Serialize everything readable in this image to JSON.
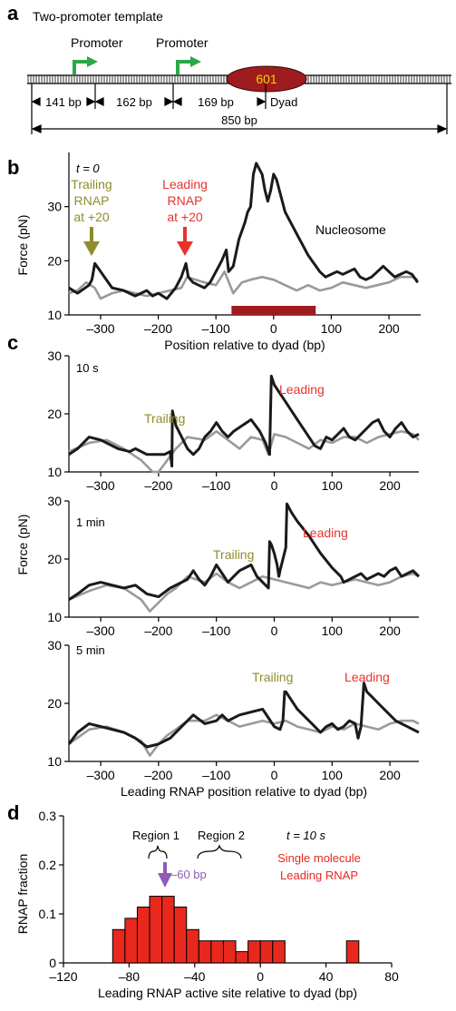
{
  "panel_labels": {
    "a": "a",
    "b": "b",
    "c": "c",
    "d": "d"
  },
  "schematic": {
    "title": "Two-promoter template",
    "promoter_labels": [
      "Promoter",
      "Promoter"
    ],
    "nucleosome_label": "601",
    "dyad_label": "Dyad",
    "spacings": [
      "141 bp",
      "162 bp",
      "169 bp"
    ],
    "total": "850 bp",
    "colors": {
      "promoter": "#2aa84a",
      "nucleosome": "#9e1b1e",
      "nucleosome_text": "#f2d200"
    }
  },
  "panel_b": {
    "time_label": "t = 0",
    "trailing_annotation": [
      "Trailing",
      "RNAP",
      "at +20"
    ],
    "leading_annotation": [
      "Leading",
      "RNAP",
      "at +20"
    ],
    "nucleosome_label": "Nucleosome",
    "colors": {
      "trailing": "#8f8c2c",
      "leading": "#e8332a",
      "bar": "#9e1b1e"
    }
  },
  "panel_c": {
    "subplots": [
      {
        "time": "10 s",
        "trailing": "Trailing",
        "leading": "Leading"
      },
      {
        "time": "1 min",
        "trailing": "Trailing",
        "leading": "Leading"
      },
      {
        "time": "5 min",
        "trailing": "Trailing",
        "leading": "Leading"
      }
    ]
  },
  "panel_d": {
    "region1": "Region 1",
    "region2": "Region 2",
    "time_label": "t = 10 s",
    "legend": [
      "Single molecule",
      "Leading RNAP"
    ],
    "marker_label": "–60 bp",
    "colors": {
      "bars": "#e8281d",
      "marker": "#8e5bb5",
      "legend": "#e8281d"
    }
  },
  "chart_data": [
    {
      "type": "line",
      "panel": "b",
      "xlabel": "Position relative to dyad (bp)",
      "ylabel": "Force (pN)",
      "xlim": [
        -355,
        255
      ],
      "ylim": [
        10,
        40
      ],
      "xticks": [
        -300,
        -200,
        -100,
        0,
        100,
        200
      ],
      "xtick_labels": [
        "–300",
        "–200",
        "–100",
        "0",
        "100",
        "200"
      ],
      "yticks": [
        10,
        20,
        30
      ],
      "series": [
        {
          "name": "",
          "color": "#9a9a9a",
          "x": [
            -355,
            -340,
            -325,
            -310,
            -300,
            -280,
            -260,
            -240,
            -220,
            -200,
            -180,
            -160,
            -150,
            -120,
            -100,
            -85,
            -70,
            -55,
            -40,
            -20,
            0,
            20,
            40,
            60,
            80,
            100,
            120,
            140,
            160,
            180,
            200,
            220,
            240,
            250
          ],
          "y": [
            14,
            14.5,
            16,
            15,
            13,
            14,
            14.5,
            14,
            13.5,
            14,
            14.5,
            15,
            17,
            16,
            15.5,
            18,
            14,
            16,
            16.5,
            17,
            16.5,
            15.5,
            14.5,
            15.5,
            14.5,
            15,
            16,
            15.5,
            15,
            15.5,
            16,
            17,
            17,
            16.5
          ]
        },
        {
          "name": "Nucleosome",
          "color": "#1a1a1a",
          "x": [
            -355,
            -340,
            -320,
            -315,
            -310,
            -300,
            -290,
            -280,
            -260,
            -240,
            -220,
            -210,
            -200,
            -185,
            -170,
            -160,
            -152,
            -148,
            -140,
            -120,
            -110,
            -100,
            -90,
            -82,
            -78,
            -70,
            -60,
            -50,
            -45,
            -40,
            -35,
            -30,
            -25,
            -20,
            -15,
            -10,
            -5,
            0,
            5,
            10,
            20,
            40,
            60,
            70,
            80,
            90,
            100,
            110,
            120,
            130,
            140,
            150,
            160,
            170,
            180,
            190,
            200,
            210,
            220,
            230,
            240,
            250
          ],
          "y": [
            15,
            14,
            15.5,
            16.5,
            19.5,
            18,
            16.5,
            15,
            14.5,
            13.5,
            14.5,
            13.5,
            14,
            13,
            15,
            17,
            19.5,
            17,
            16,
            15,
            16,
            18,
            20,
            22,
            18,
            19,
            24,
            27,
            29,
            30,
            36,
            38,
            37,
            36,
            33,
            31,
            33,
            36,
            35,
            33,
            29,
            25,
            21,
            19.5,
            18,
            17,
            17.5,
            18,
            17.5,
            18,
            18.5,
            17,
            16.5,
            17,
            18,
            19,
            18,
            17,
            17.5,
            18,
            17.5,
            16
          ]
        }
      ],
      "annotations": [
        "Trailing RNAP at +20 (x = -315)",
        "Leading RNAP at +20 (x = -150)"
      ],
      "nucleosome_bar": [
        -73,
        73
      ]
    },
    {
      "type": "line",
      "panel": "c-10s",
      "xlim": [
        -355,
        250
      ],
      "ylim": [
        10,
        30
      ],
      "xticks": [
        -300,
        -200,
        -100,
        0,
        100,
        200
      ],
      "xtick_labels": [
        "–300",
        "–200",
        "–100",
        "0",
        "100",
        "200"
      ],
      "yticks": [
        10,
        20,
        30
      ],
      "series": [
        {
          "name": "",
          "color": "#9a9a9a",
          "x": [
            -355,
            -320,
            -290,
            -260,
            -230,
            -210,
            -200,
            -185,
            -170,
            -150,
            -120,
            -100,
            -80,
            -60,
            -40,
            -20,
            -10,
            0,
            20,
            40,
            60,
            80,
            100,
            120,
            140,
            160,
            180,
            200,
            220,
            240,
            250
          ],
          "y": [
            13.5,
            15,
            15.5,
            14,
            12,
            10,
            10,
            12,
            14,
            16,
            15.5,
            17,
            15.5,
            14,
            16,
            15.5,
            13,
            16.5,
            16,
            15,
            14,
            15.5,
            15,
            16,
            16,
            15,
            16,
            16.5,
            17,
            16.5,
            15.5
          ]
        },
        {
          "name": "",
          "color": "#1a1a1a",
          "x": [
            -355,
            -340,
            -320,
            -300,
            -290,
            -270,
            -250,
            -240,
            -220,
            -200,
            -190,
            -180,
            -177,
            -176,
            -170,
            -160,
            -150,
            -140,
            -130,
            -120,
            -110,
            -100,
            -90,
            -80,
            -70,
            -55,
            -40,
            -25,
            -15,
            -8,
            -5,
            0,
            10,
            20,
            40,
            60,
            70,
            80,
            90,
            100,
            110,
            120,
            130,
            140,
            150,
            160,
            170,
            180,
            190,
            200,
            210,
            220,
            230,
            240,
            250
          ],
          "y": [
            13,
            14,
            16,
            15.5,
            15,
            14,
            13.5,
            14,
            13,
            13,
            13,
            13.5,
            11,
            20.5,
            18,
            16,
            14,
            13,
            14,
            16,
            17,
            18.5,
            17,
            16,
            17,
            18,
            19,
            17,
            15,
            13,
            26.5,
            25,
            23.5,
            22,
            19,
            16,
            14.5,
            14,
            16,
            15.5,
            16.5,
            17.5,
            16,
            15.5,
            16.5,
            17.5,
            18.5,
            19,
            17,
            16,
            17.5,
            18.5,
            17,
            16,
            16.5
          ]
        }
      ]
    },
    {
      "type": "line",
      "panel": "c-1min",
      "ylabel": "Force (pN)",
      "xlim": [
        -355,
        250
      ],
      "ylim": [
        10,
        30
      ],
      "xticks": [
        -300,
        -200,
        -100,
        0,
        100,
        200
      ],
      "xtick_labels": [
        "–300",
        "–200",
        "–100",
        "0",
        "100",
        "200"
      ],
      "yticks": [
        10,
        20,
        30
      ],
      "series": [
        {
          "name": "",
          "color": "#9a9a9a",
          "x": [
            -355,
            -320,
            -290,
            -260,
            -230,
            -215,
            -200,
            -185,
            -170,
            -150,
            -120,
            -100,
            -80,
            -60,
            -40,
            -20,
            0,
            20,
            40,
            60,
            80,
            100,
            120,
            140,
            160,
            180,
            200,
            220,
            240,
            250
          ],
          "y": [
            13,
            14.5,
            15.5,
            15,
            13,
            11,
            12.5,
            14,
            15,
            17,
            16,
            17.5,
            16,
            15,
            16,
            17,
            16.5,
            16,
            15.5,
            15,
            16,
            15.5,
            16,
            16.5,
            16,
            15.5,
            16,
            17,
            17.5,
            17
          ]
        },
        {
          "name": "",
          "color": "#1a1a1a",
          "x": [
            -355,
            -340,
            -320,
            -300,
            -280,
            -260,
            -240,
            -220,
            -200,
            -180,
            -160,
            -150,
            -140,
            -130,
            -120,
            -110,
            -100,
            -90,
            -80,
            -70,
            -60,
            -50,
            -40,
            -30,
            -20,
            -10,
            -8,
            -5,
            0,
            5,
            8,
            10,
            15,
            20,
            22,
            30,
            40,
            60,
            80,
            100,
            115,
            120,
            130,
            140,
            150,
            160,
            170,
            180,
            190,
            200,
            210,
            220,
            230,
            240,
            250
          ],
          "y": [
            13,
            14,
            15.5,
            16,
            15.5,
            15,
            15.5,
            14,
            13.5,
            15,
            16,
            16.5,
            18,
            16.5,
            15.5,
            17,
            19,
            17.5,
            16,
            17,
            18,
            18.5,
            19,
            17,
            16,
            15,
            23,
            22.5,
            21,
            19,
            17,
            18,
            20,
            22,
            29.5,
            28,
            26.5,
            24,
            21,
            18.5,
            17,
            16,
            16.5,
            17,
            17.5,
            16.5,
            17,
            17.5,
            17,
            18,
            18.5,
            17,
            17.5,
            18,
            17
          ]
        }
      ]
    },
    {
      "type": "line",
      "panel": "c-5min",
      "xlabel": "Leading RNAP position relative to dyad (bp)",
      "xlim": [
        -355,
        250
      ],
      "ylim": [
        10,
        30
      ],
      "xticks": [
        -300,
        -200,
        -100,
        0,
        100,
        200
      ],
      "xtick_labels": [
        "–300",
        "–200",
        "–100",
        "0",
        "100",
        "200"
      ],
      "yticks": [
        10,
        20,
        30
      ],
      "series": [
        {
          "name": "",
          "color": "#9a9a9a",
          "x": [
            -355,
            -320,
            -290,
            -260,
            -230,
            -215,
            -200,
            -185,
            -170,
            -150,
            -120,
            -100,
            -80,
            -60,
            -40,
            -20,
            0,
            20,
            40,
            60,
            80,
            100,
            120,
            140,
            160,
            180,
            200,
            220,
            240,
            250
          ],
          "y": [
            13,
            15.5,
            16,
            15,
            13.5,
            11,
            13,
            14.5,
            15.5,
            17,
            17,
            18,
            17,
            16,
            16.5,
            17,
            16.5,
            17,
            16,
            15.5,
            15,
            16,
            15.5,
            16.5,
            16,
            15.5,
            16.5,
            17,
            17,
            16.5
          ]
        },
        {
          "name": "",
          "color": "#1a1a1a",
          "x": [
            -355,
            -340,
            -320,
            -300,
            -280,
            -260,
            -240,
            -220,
            -200,
            -180,
            -160,
            -150,
            -140,
            -120,
            -100,
            -90,
            -80,
            -60,
            -40,
            -20,
            -10,
            0,
            10,
            15,
            18,
            20,
            40,
            60,
            70,
            80,
            90,
            100,
            110,
            120,
            130,
            140,
            145,
            150,
            155,
            160,
            170,
            180,
            190,
            200,
            210,
            220,
            230,
            240,
            250
          ],
          "y": [
            13,
            15,
            16.5,
            16,
            15.5,
            15,
            14,
            12.5,
            13,
            14,
            16,
            17,
            18,
            16.5,
            17,
            18,
            17,
            18,
            18.5,
            19,
            17.5,
            16,
            15.5,
            17,
            22,
            22,
            19,
            17,
            16,
            15,
            16,
            16.5,
            15.5,
            16,
            17,
            16.5,
            14,
            16,
            23.5,
            22,
            21,
            20,
            19,
            18,
            17,
            16.5,
            16,
            15.5,
            15
          ]
        }
      ]
    },
    {
      "type": "bar",
      "panel": "d",
      "xlabel": "Leading RNAP active site relative to dyad (bp)",
      "ylabel": "RNAP fraction",
      "xlim": [
        -120,
        80
      ],
      "ylim": [
        0,
        0.3
      ],
      "xticks": [
        -120,
        -80,
        -40,
        0,
        40,
        80
      ],
      "xtick_labels": [
        "–120",
        "–80",
        "–40",
        "0",
        "40",
        "80"
      ],
      "yticks": [
        0,
        0.1,
        0.2,
        0.3
      ],
      "ytick_labels": [
        "0",
        "0.1",
        "0.2",
        "0.3"
      ],
      "bin_width": 7.5,
      "x": [
        -86.25,
        -78.75,
        -71.25,
        -63.75,
        -56.25,
        -48.75,
        -41.25,
        -33.75,
        -26.25,
        -18.75,
        -11.25,
        -3.75,
        3.75,
        11.25,
        18.75,
        26.25,
        33.75,
        41.25,
        48.75,
        56.25
      ],
      "values": [
        0.068,
        0.091,
        0.114,
        0.136,
        0.136,
        0.114,
        0.068,
        0.045,
        0.045,
        0.045,
        0.023,
        0.045,
        0.045,
        0.045,
        0,
        0,
        0,
        0,
        0,
        0.045
      ]
    }
  ]
}
